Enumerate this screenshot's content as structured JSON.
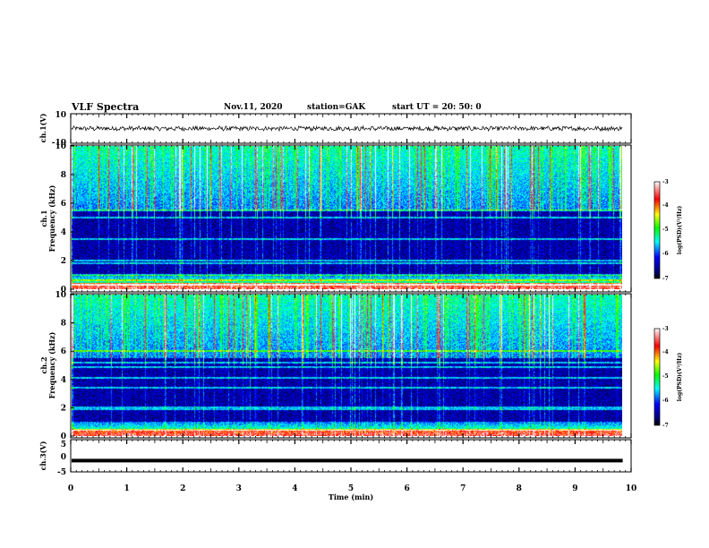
{
  "header": {
    "title": "VLF Spectra",
    "date": "Nov.11, 2020",
    "station": "station=GAK",
    "start_time": "start UT = 20: 50: 0"
  },
  "chart_data": [
    {
      "type": "line",
      "name": "ch1-waveform",
      "ylabel": "ch.1(V)",
      "ylim": [
        -10,
        10
      ],
      "y_ticks": [
        "10",
        "-10"
      ],
      "approx_level": 0,
      "approx_amplitude": 2
    },
    {
      "type": "heatmap",
      "name": "ch1-spectrogram",
      "ylabel": "ch.1",
      "ylabel2": "Frequency (kHz)",
      "ylim": [
        0,
        10
      ],
      "y_ticks": [
        "0",
        "2",
        "4",
        "6",
        "8",
        "10"
      ],
      "xlim": [
        0,
        9.85
      ],
      "colorbar": {
        "label": "log(PSD)(V²/Hz)",
        "range": [
          -7,
          -3
        ],
        "ticks": [
          "-3",
          "-4",
          "-5",
          "-6",
          "-7"
        ]
      },
      "features": {
        "hiss_band_khz": [
          5.5,
          10
        ],
        "quiet_band_khz": [
          1,
          5.5
        ],
        "lines_khz": [
          0.3,
          0.6,
          1.0,
          1.8,
          2.0,
          3.5,
          5.0,
          5.5
        ]
      }
    },
    {
      "type": "heatmap",
      "name": "ch2-spectrogram",
      "ylabel": "ch.2",
      "ylabel2": "Frequency (kHz)",
      "ylim": [
        0,
        10
      ],
      "y_ticks": [
        "0",
        "2",
        "4",
        "6",
        "8",
        "10"
      ],
      "xlim": [
        0,
        9.85
      ],
      "colorbar": {
        "label": "log(PSD)(V²/Hz)",
        "range": [
          -7,
          -3
        ],
        "ticks": [
          "-3",
          "-4",
          "-5",
          "-6",
          "-7"
        ]
      },
      "features": {
        "hiss_band_khz": [
          5.5,
          10
        ],
        "quiet_band_khz": [
          1,
          5.5
        ],
        "lines_khz": [
          0.4,
          1.9,
          2.0,
          3.4,
          4.1,
          4.9,
          5.2,
          6.0
        ]
      }
    },
    {
      "type": "line",
      "name": "ch3-waveform",
      "ylabel": "ch.3(V)",
      "ylim": [
        -5,
        5
      ],
      "y_ticks": [
        "5",
        "0",
        "-5"
      ],
      "approx_level": -1.5
    }
  ],
  "x_axis": {
    "label": "Time (min)",
    "range": [
      0,
      10
    ],
    "ticks": [
      "0",
      "1",
      "2",
      "3",
      "4",
      "5",
      "6",
      "7",
      "8",
      "9",
      "10"
    ]
  },
  "colors": {
    "background": "#ffffff",
    "axis": "#000000",
    "colormap": [
      "#000000",
      "#0000ff",
      "#00ffff",
      "#00ff00",
      "#ffff00",
      "#ff0000",
      "#ffffff"
    ]
  }
}
